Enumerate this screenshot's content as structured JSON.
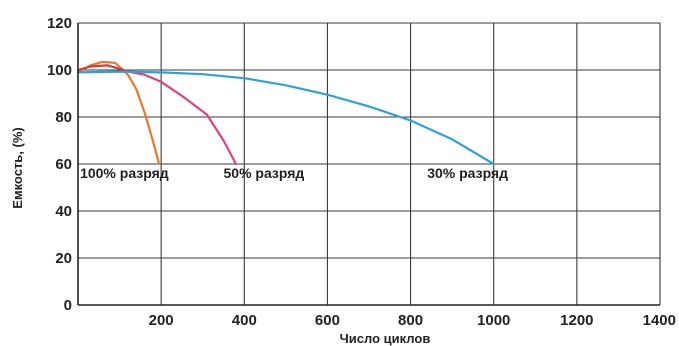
{
  "chart_data": {
    "type": "line",
    "title": "",
    "xlabel": "Число циклов",
    "ylabel": "Емкость, (%)",
    "xlim": [
      0,
      1400
    ],
    "ylim": [
      0,
      120
    ],
    "x_ticks": [
      200,
      400,
      600,
      800,
      1000,
      1200,
      1400
    ],
    "x_tick_labels": [
      "200",
      "400",
      "600",
      "800",
      "1000",
      "1200",
      "1400"
    ],
    "y_ticks": [
      0,
      20,
      40,
      60,
      80,
      100,
      120
    ],
    "y_tick_labels": [
      "0",
      "20",
      "40",
      "60",
      "80",
      "100",
      "120"
    ],
    "grid": true,
    "series": [
      {
        "name": "100% разряд",
        "color": "#E8782A",
        "points": [
          [
            0,
            99
          ],
          [
            30,
            102
          ],
          [
            60,
            103.5
          ],
          [
            90,
            103
          ],
          [
            120,
            98
          ],
          [
            140,
            92
          ],
          [
            160,
            82
          ],
          [
            180,
            70
          ],
          [
            195,
            60
          ]
        ]
      },
      {
        "name": "",
        "color": "#D63A3A",
        "points": [
          [
            0,
            100
          ],
          [
            30,
            101.5
          ],
          [
            70,
            102
          ],
          [
            110,
            100
          ],
          [
            130,
            99
          ]
        ]
      },
      {
        "name": "50% разряд",
        "color": "#E0417F",
        "points": [
          [
            130,
            99
          ],
          [
            160,
            98
          ],
          [
            200,
            95
          ],
          [
            250,
            89
          ],
          [
            310,
            81
          ],
          [
            350,
            70
          ],
          [
            380,
            60
          ]
        ]
      },
      {
        "name": "30% разряд",
        "color": "#2FA0D8",
        "points": [
          [
            0,
            99
          ],
          [
            100,
            99.3
          ],
          [
            200,
            99
          ],
          [
            300,
            98.2
          ],
          [
            400,
            96.5
          ],
          [
            500,
            93.5
          ],
          [
            600,
            89.5
          ],
          [
            700,
            84.5
          ],
          [
            800,
            78.5
          ],
          [
            900,
            70.5
          ],
          [
            1000,
            60
          ]
        ]
      }
    ],
    "annotations": [
      {
        "text": "100% разряд",
        "x": 5,
        "y": 54
      },
      {
        "text": "50% разряд",
        "x": 350,
        "y": 54
      },
      {
        "text": "30% разряд",
        "x": 840,
        "y": 54
      }
    ]
  }
}
